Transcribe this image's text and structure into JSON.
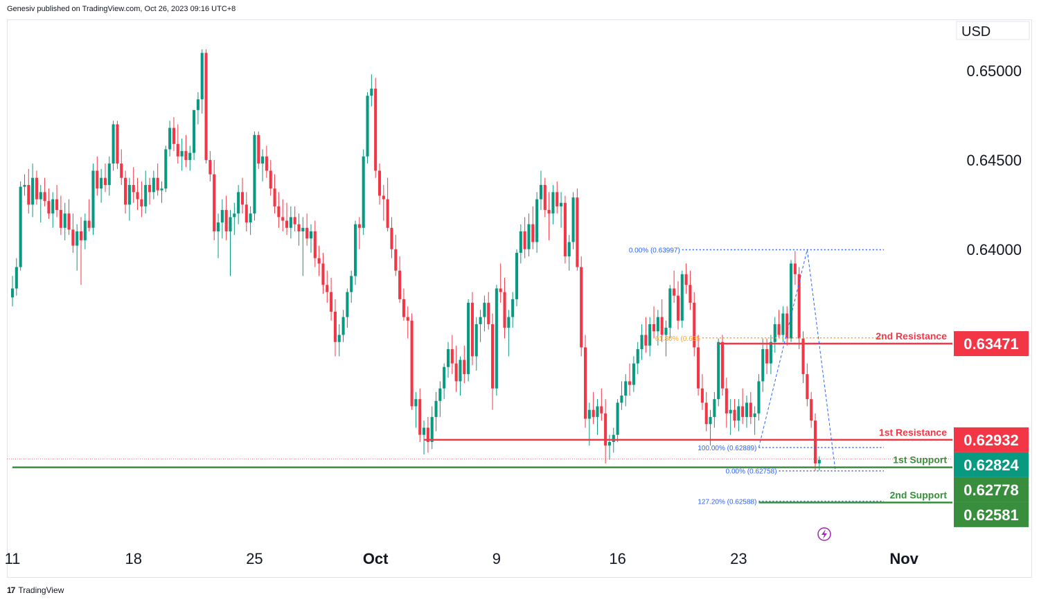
{
  "header": {
    "published": "Genesiv published on TradingView.com, Oct 26, 2023 09:16 UTC+8"
  },
  "footer": {
    "brand": "TradingView",
    "logo_text": "17"
  },
  "colors": {
    "up": "#089981",
    "down": "#f23645",
    "fib": "#2962ff",
    "fib618": "#f7a21b",
    "support": "#388e3c",
    "resistance": "#f23645",
    "axis": "#131722"
  },
  "chart_data": {
    "type": "candlestick",
    "title": "",
    "currency_label": "USD",
    "y_ticks": [
      {
        "value": 0.64,
        "label": "0.64000"
      },
      {
        "value": 0.645,
        "label": "0.64500"
      },
      {
        "value": 0.65,
        "label": "0.65000"
      }
    ],
    "ylim": [
      0.6233,
      0.6528
    ],
    "x_ticks": [
      {
        "index": 0,
        "label": "11"
      },
      {
        "index": 30,
        "label": "18"
      },
      {
        "index": 60,
        "label": "25"
      },
      {
        "index": 90,
        "label": "Oct",
        "bold": true
      },
      {
        "index": 120,
        "label": "9"
      },
      {
        "index": 150,
        "label": "16"
      },
      {
        "index": 180,
        "label": "23"
      },
      {
        "index": 221,
        "label": "Nov",
        "bold": true
      }
    ],
    "x_range": [
      0,
      233
    ],
    "candles": [
      [
        0.6373,
        0.6385,
        0.6368,
        0.6378
      ],
      [
        0.6378,
        0.6395,
        0.6374,
        0.639
      ],
      [
        0.639,
        0.6438,
        0.6388,
        0.6435
      ],
      [
        0.6435,
        0.6442,
        0.643,
        0.6436
      ],
      [
        0.6436,
        0.6445,
        0.642,
        0.6425
      ],
      [
        0.6425,
        0.6448,
        0.6418,
        0.644
      ],
      [
        0.644,
        0.6444,
        0.6425,
        0.6428
      ],
      [
        0.6428,
        0.6436,
        0.6415,
        0.6432
      ],
      [
        0.6432,
        0.644,
        0.6424,
        0.6427
      ],
      [
        0.6427,
        0.6434,
        0.6417,
        0.642
      ],
      [
        0.642,
        0.6432,
        0.6412,
        0.6428
      ],
      [
        0.6428,
        0.6436,
        0.6418,
        0.6422
      ],
      [
        0.6422,
        0.643,
        0.6408,
        0.6412
      ],
      [
        0.6412,
        0.6426,
        0.6405,
        0.642
      ],
      [
        0.642,
        0.6428,
        0.6408,
        0.6411
      ],
      [
        0.6411,
        0.642,
        0.6398,
        0.6402
      ],
      [
        0.6402,
        0.6414,
        0.6388,
        0.641
      ],
      [
        0.641,
        0.6418,
        0.638,
        0.6405
      ],
      [
        0.6405,
        0.642,
        0.64,
        0.6416
      ],
      [
        0.6416,
        0.6428,
        0.641,
        0.6412
      ],
      [
        0.6412,
        0.6448,
        0.6408,
        0.6444
      ],
      [
        0.6444,
        0.6452,
        0.643,
        0.6434
      ],
      [
        0.6434,
        0.6445,
        0.6426,
        0.644
      ],
      [
        0.644,
        0.6448,
        0.6432,
        0.6436
      ],
      [
        0.6436,
        0.6452,
        0.643,
        0.6448
      ],
      [
        0.6448,
        0.6472,
        0.6444,
        0.647
      ],
      [
        0.647,
        0.6472,
        0.6445,
        0.6448
      ],
      [
        0.6448,
        0.6456,
        0.6436,
        0.644
      ],
      [
        0.644,
        0.6444,
        0.642,
        0.6425
      ],
      [
        0.6425,
        0.644,
        0.6416,
        0.6436
      ],
      [
        0.6436,
        0.6446,
        0.6426,
        0.6432
      ],
      [
        0.6432,
        0.644,
        0.6422,
        0.6428
      ],
      [
        0.6428,
        0.6438,
        0.6418,
        0.6424
      ],
      [
        0.6424,
        0.6444,
        0.642,
        0.6436
      ],
      [
        0.6436,
        0.644,
        0.6425,
        0.6432
      ],
      [
        0.6432,
        0.6444,
        0.6428,
        0.644
      ],
      [
        0.644,
        0.6448,
        0.643,
        0.6433
      ],
      [
        0.6433,
        0.6438,
        0.6426,
        0.6434
      ],
      [
        0.6434,
        0.6458,
        0.6432,
        0.6456
      ],
      [
        0.6456,
        0.6472,
        0.6452,
        0.6468
      ],
      [
        0.6468,
        0.6474,
        0.6455,
        0.6459
      ],
      [
        0.6459,
        0.647,
        0.6448,
        0.6452
      ],
      [
        0.6452,
        0.6462,
        0.6444,
        0.6455
      ],
      [
        0.6455,
        0.6464,
        0.6446,
        0.645
      ],
      [
        0.645,
        0.6458,
        0.6444,
        0.6454
      ],
      [
        0.6454,
        0.6476,
        0.645,
        0.6478
      ],
      [
        0.6478,
        0.6488,
        0.647,
        0.6484
      ],
      [
        0.6484,
        0.6512,
        0.6476,
        0.651
      ],
      [
        0.651,
        0.6512,
        0.6448,
        0.645
      ],
      [
        0.645,
        0.6455,
        0.6438,
        0.6442
      ],
      [
        0.6442,
        0.645,
        0.6405,
        0.641
      ],
      [
        0.641,
        0.642,
        0.6395,
        0.6415
      ],
      [
        0.6415,
        0.6428,
        0.6406,
        0.6422
      ],
      [
        0.6422,
        0.643,
        0.6405,
        0.641
      ],
      [
        0.641,
        0.6422,
        0.6385,
        0.6418
      ],
      [
        0.6418,
        0.6426,
        0.6408,
        0.642
      ],
      [
        0.642,
        0.6436,
        0.6414,
        0.6432
      ],
      [
        0.6432,
        0.644,
        0.642,
        0.6425
      ],
      [
        0.6425,
        0.6432,
        0.641,
        0.6415
      ],
      [
        0.6415,
        0.6424,
        0.6408,
        0.642
      ],
      [
        0.642,
        0.6466,
        0.6416,
        0.6464
      ],
      [
        0.6464,
        0.6466,
        0.6445,
        0.6448
      ],
      [
        0.6448,
        0.6456,
        0.6438,
        0.6452
      ],
      [
        0.6452,
        0.6458,
        0.644,
        0.6444
      ],
      [
        0.6444,
        0.645,
        0.643,
        0.6434
      ],
      [
        0.6434,
        0.6442,
        0.642,
        0.6424
      ],
      [
        0.6424,
        0.6432,
        0.6412,
        0.6418
      ],
      [
        0.6418,
        0.6428,
        0.641,
        0.6416
      ],
      [
        0.6416,
        0.6426,
        0.6408,
        0.6412
      ],
      [
        0.6412,
        0.6424,
        0.6406,
        0.6418
      ],
      [
        0.6418,
        0.6424,
        0.641,
        0.6414
      ],
      [
        0.6414,
        0.642,
        0.6402,
        0.641
      ],
      [
        0.641,
        0.6418,
        0.6385,
        0.6412
      ],
      [
        0.6412,
        0.642,
        0.6402,
        0.6406
      ],
      [
        0.6406,
        0.6414,
        0.6398,
        0.641
      ],
      [
        0.641,
        0.6416,
        0.639,
        0.6395
      ],
      [
        0.6395,
        0.6402,
        0.6385,
        0.6392
      ],
      [
        0.6392,
        0.6398,
        0.6375,
        0.638
      ],
      [
        0.638,
        0.6388,
        0.637,
        0.6376
      ],
      [
        0.6376,
        0.6384,
        0.636,
        0.6365
      ],
      [
        0.6365,
        0.6372,
        0.634,
        0.6348
      ],
      [
        0.6348,
        0.6358,
        0.634,
        0.6352
      ],
      [
        0.6352,
        0.6366,
        0.6348,
        0.6362
      ],
      [
        0.6362,
        0.6378,
        0.6356,
        0.6376
      ],
      [
        0.6376,
        0.6388,
        0.637,
        0.6385
      ],
      [
        0.6385,
        0.6416,
        0.638,
        0.6414
      ],
      [
        0.6414,
        0.6418,
        0.64,
        0.6412
      ],
      [
        0.6412,
        0.6456,
        0.6408,
        0.6452
      ],
      [
        0.6452,
        0.6488,
        0.6448,
        0.6486
      ],
      [
        0.6486,
        0.6498,
        0.648,
        0.649
      ],
      [
        0.649,
        0.6496,
        0.644,
        0.6444
      ],
      [
        0.6444,
        0.6448,
        0.6425,
        0.643
      ],
      [
        0.643,
        0.6436,
        0.6416,
        0.6428
      ],
      [
        0.6428,
        0.644,
        0.641,
        0.6412
      ],
      [
        0.6412,
        0.6418,
        0.6395,
        0.64
      ],
      [
        0.64,
        0.6408,
        0.6385,
        0.6388
      ],
      [
        0.6388,
        0.6396,
        0.637,
        0.6372
      ],
      [
        0.6372,
        0.6378,
        0.636,
        0.6362
      ],
      [
        0.6362,
        0.6368,
        0.635,
        0.636
      ],
      [
        0.636,
        0.6364,
        0.631,
        0.6312
      ],
      [
        0.6312,
        0.632,
        0.63,
        0.6316
      ],
      [
        0.6316,
        0.6322,
        0.6292,
        0.6296
      ],
      [
        0.6296,
        0.6304,
        0.6285,
        0.63
      ],
      [
        0.63,
        0.6306,
        0.6286,
        0.6292
      ],
      [
        0.6292,
        0.6312,
        0.6288,
        0.6306
      ],
      [
        0.6306,
        0.632,
        0.6298,
        0.6315
      ],
      [
        0.6315,
        0.6326,
        0.6306,
        0.6322
      ],
      [
        0.6322,
        0.6336,
        0.6316,
        0.6334
      ],
      [
        0.6334,
        0.6348,
        0.6328,
        0.6344
      ],
      [
        0.6344,
        0.6352,
        0.633,
        0.6336
      ],
      [
        0.6336,
        0.6346,
        0.632,
        0.6326
      ],
      [
        0.6326,
        0.634,
        0.6318,
        0.6338
      ],
      [
        0.6338,
        0.6346,
        0.6325,
        0.633
      ],
      [
        0.633,
        0.6372,
        0.6326,
        0.637
      ],
      [
        0.637,
        0.6376,
        0.6335,
        0.634
      ],
      [
        0.634,
        0.6362,
        0.6332,
        0.6358
      ],
      [
        0.6358,
        0.6366,
        0.6348,
        0.6362
      ],
      [
        0.6362,
        0.6374,
        0.6354,
        0.637
      ],
      [
        0.637,
        0.6376,
        0.6355,
        0.6358
      ],
      [
        0.6358,
        0.6364,
        0.631,
        0.6322
      ],
      [
        0.6322,
        0.638,
        0.6318,
        0.6378
      ],
      [
        0.6378,
        0.6392,
        0.637,
        0.6376
      ],
      [
        0.6376,
        0.6384,
        0.635,
        0.6356
      ],
      [
        0.6356,
        0.6366,
        0.634,
        0.6362
      ],
      [
        0.6362,
        0.6376,
        0.6356,
        0.6372
      ],
      [
        0.6372,
        0.64,
        0.6368,
        0.6398
      ],
      [
        0.6398,
        0.6414,
        0.6392,
        0.641
      ],
      [
        0.641,
        0.6418,
        0.6395,
        0.64
      ],
      [
        0.64,
        0.642,
        0.6396,
        0.6414
      ],
      [
        0.6414,
        0.6424,
        0.64,
        0.6404
      ],
      [
        0.6404,
        0.6432,
        0.6398,
        0.6428
      ],
      [
        0.6428,
        0.6444,
        0.6422,
        0.6436
      ],
      [
        0.6436,
        0.644,
        0.6418,
        0.6422
      ],
      [
        0.6422,
        0.6432,
        0.6405,
        0.642
      ],
      [
        0.642,
        0.6436,
        0.6414,
        0.6432
      ],
      [
        0.6432,
        0.6438,
        0.642,
        0.6424
      ],
      [
        0.6424,
        0.6432,
        0.6412,
        0.6426
      ],
      [
        0.6426,
        0.643,
        0.6392,
        0.6396
      ],
      [
        0.6396,
        0.6408,
        0.6388,
        0.6404
      ],
      [
        0.6404,
        0.6432,
        0.64,
        0.6429
      ],
      [
        0.6429,
        0.6434,
        0.6388,
        0.639
      ],
      [
        0.639,
        0.6396,
        0.634,
        0.6345
      ],
      [
        0.6345,
        0.6352,
        0.63,
        0.6305
      ],
      [
        0.6305,
        0.6314,
        0.629,
        0.631
      ],
      [
        0.631,
        0.632,
        0.6302,
        0.6306
      ],
      [
        0.6306,
        0.6316,
        0.6296,
        0.6312
      ],
      [
        0.6312,
        0.6322,
        0.6304,
        0.6308
      ],
      [
        0.6308,
        0.6316,
        0.628,
        0.629
      ],
      [
        0.629,
        0.6296,
        0.6282,
        0.6292
      ],
      [
        0.6292,
        0.63,
        0.6286,
        0.6296
      ],
      [
        0.6296,
        0.6316,
        0.6292,
        0.6314
      ],
      [
        0.6314,
        0.6326,
        0.631,
        0.6318
      ],
      [
        0.6318,
        0.633,
        0.6312,
        0.6326
      ],
      [
        0.6326,
        0.6336,
        0.6318,
        0.6324
      ],
      [
        0.6324,
        0.634,
        0.632,
        0.6336
      ],
      [
        0.6336,
        0.6348,
        0.633,
        0.6344
      ],
      [
        0.6344,
        0.6358,
        0.6338,
        0.6352
      ],
      [
        0.6352,
        0.6362,
        0.6342,
        0.6346
      ],
      [
        0.6346,
        0.6362,
        0.634,
        0.6358
      ],
      [
        0.6358,
        0.6368,
        0.635,
        0.6354
      ],
      [
        0.6354,
        0.6366,
        0.6346,
        0.6362
      ],
      [
        0.6362,
        0.6372,
        0.6348,
        0.6352
      ],
      [
        0.6352,
        0.636,
        0.634,
        0.6356
      ],
      [
        0.6356,
        0.638,
        0.635,
        0.6378
      ],
      [
        0.6378,
        0.6388,
        0.637,
        0.6374
      ],
      [
        0.6374,
        0.6382,
        0.6355,
        0.636
      ],
      [
        0.636,
        0.6388,
        0.6356,
        0.6386
      ],
      [
        0.6386,
        0.6392,
        0.6375,
        0.638
      ],
      [
        0.638,
        0.6388,
        0.6366,
        0.637
      ],
      [
        0.637,
        0.6376,
        0.634,
        0.6345
      ],
      [
        0.6345,
        0.6352,
        0.6318,
        0.6322
      ],
      [
        0.6322,
        0.633,
        0.631,
        0.6314
      ],
      [
        0.6314,
        0.632,
        0.6298,
        0.6302
      ],
      [
        0.6302,
        0.631,
        0.629,
        0.6306
      ],
      [
        0.6306,
        0.632,
        0.63,
        0.6316
      ],
      [
        0.6316,
        0.635,
        0.6312,
        0.6348
      ],
      [
        0.6348,
        0.6352,
        0.6318,
        0.6322
      ],
      [
        0.6322,
        0.6328,
        0.63,
        0.6308
      ],
      [
        0.6308,
        0.6316,
        0.6296,
        0.631
      ],
      [
        0.631,
        0.6316,
        0.63,
        0.6304
      ],
      [
        0.6304,
        0.6316,
        0.6298,
        0.6312
      ],
      [
        0.6312,
        0.6322,
        0.6302,
        0.6306
      ],
      [
        0.6306,
        0.6318,
        0.63,
        0.6314
      ],
      [
        0.6314,
        0.632,
        0.6302,
        0.6306
      ],
      [
        0.6306,
        0.6312,
        0.6296,
        0.6308
      ],
      [
        0.6308,
        0.633,
        0.6304,
        0.6326
      ],
      [
        0.6326,
        0.635,
        0.632,
        0.6344
      ],
      [
        0.6344,
        0.635,
        0.633,
        0.6336
      ],
      [
        0.6336,
        0.6352,
        0.633,
        0.6348
      ],
      [
        0.6348,
        0.6362,
        0.6342,
        0.6358
      ],
      [
        0.6358,
        0.6366,
        0.635,
        0.6352
      ],
      [
        0.6352,
        0.6368,
        0.6348,
        0.6364
      ],
      [
        0.6364,
        0.6368,
        0.6346,
        0.635
      ],
      [
        0.635,
        0.6394,
        0.6348,
        0.6392
      ],
      [
        0.6392,
        0.6399,
        0.638,
        0.6386
      ],
      [
        0.6386,
        0.639,
        0.6344,
        0.635
      ],
      [
        0.635,
        0.6354,
        0.6325,
        0.633
      ],
      [
        0.633,
        0.6336,
        0.6312,
        0.6316
      ],
      [
        0.6316,
        0.632,
        0.63,
        0.6304
      ],
      [
        0.6304,
        0.6308,
        0.6276,
        0.628
      ],
      [
        0.628,
        0.6284,
        0.6276,
        0.6282
      ]
    ],
    "lines": [
      {
        "name": "2nd Resistance",
        "price": 0.63471,
        "price_label": "0.63471",
        "color": "#f23645",
        "type": "resistance",
        "start": 175
      },
      {
        "name": "1st Resistance",
        "price": 0.62932,
        "price_label": "0.62932",
        "color": "#f23645",
        "type": "resistance",
        "start": 102
      },
      {
        "name": "1st Support",
        "price": 0.62778,
        "price_label": "0.62778",
        "color": "#388e3c",
        "type": "support",
        "start": 0
      },
      {
        "name": "2nd Support",
        "price": 0.62581,
        "price_label": "0.62581",
        "color": "#388e3c",
        "type": "support",
        "start": 185
      }
    ],
    "last_price": {
      "value": 0.62824,
      "label": "0.62824"
    },
    "fib_labels": [
      {
        "text": "0.00% (0.63997)",
        "price": 0.63997,
        "end": 166
      },
      {
        "text": "61.80% (0.635",
        "price": 0.63503,
        "end": 171,
        "color": "#f7a21b"
      },
      {
        "text": "100.00% (0.62889)",
        "price": 0.62889,
        "end": 185
      },
      {
        "text": "0.00% (0.62758)",
        "price": 0.62758,
        "end": 190
      },
      {
        "text": "127.20% (0.62588)",
        "price": 0.62588,
        "end": 185
      }
    ]
  }
}
